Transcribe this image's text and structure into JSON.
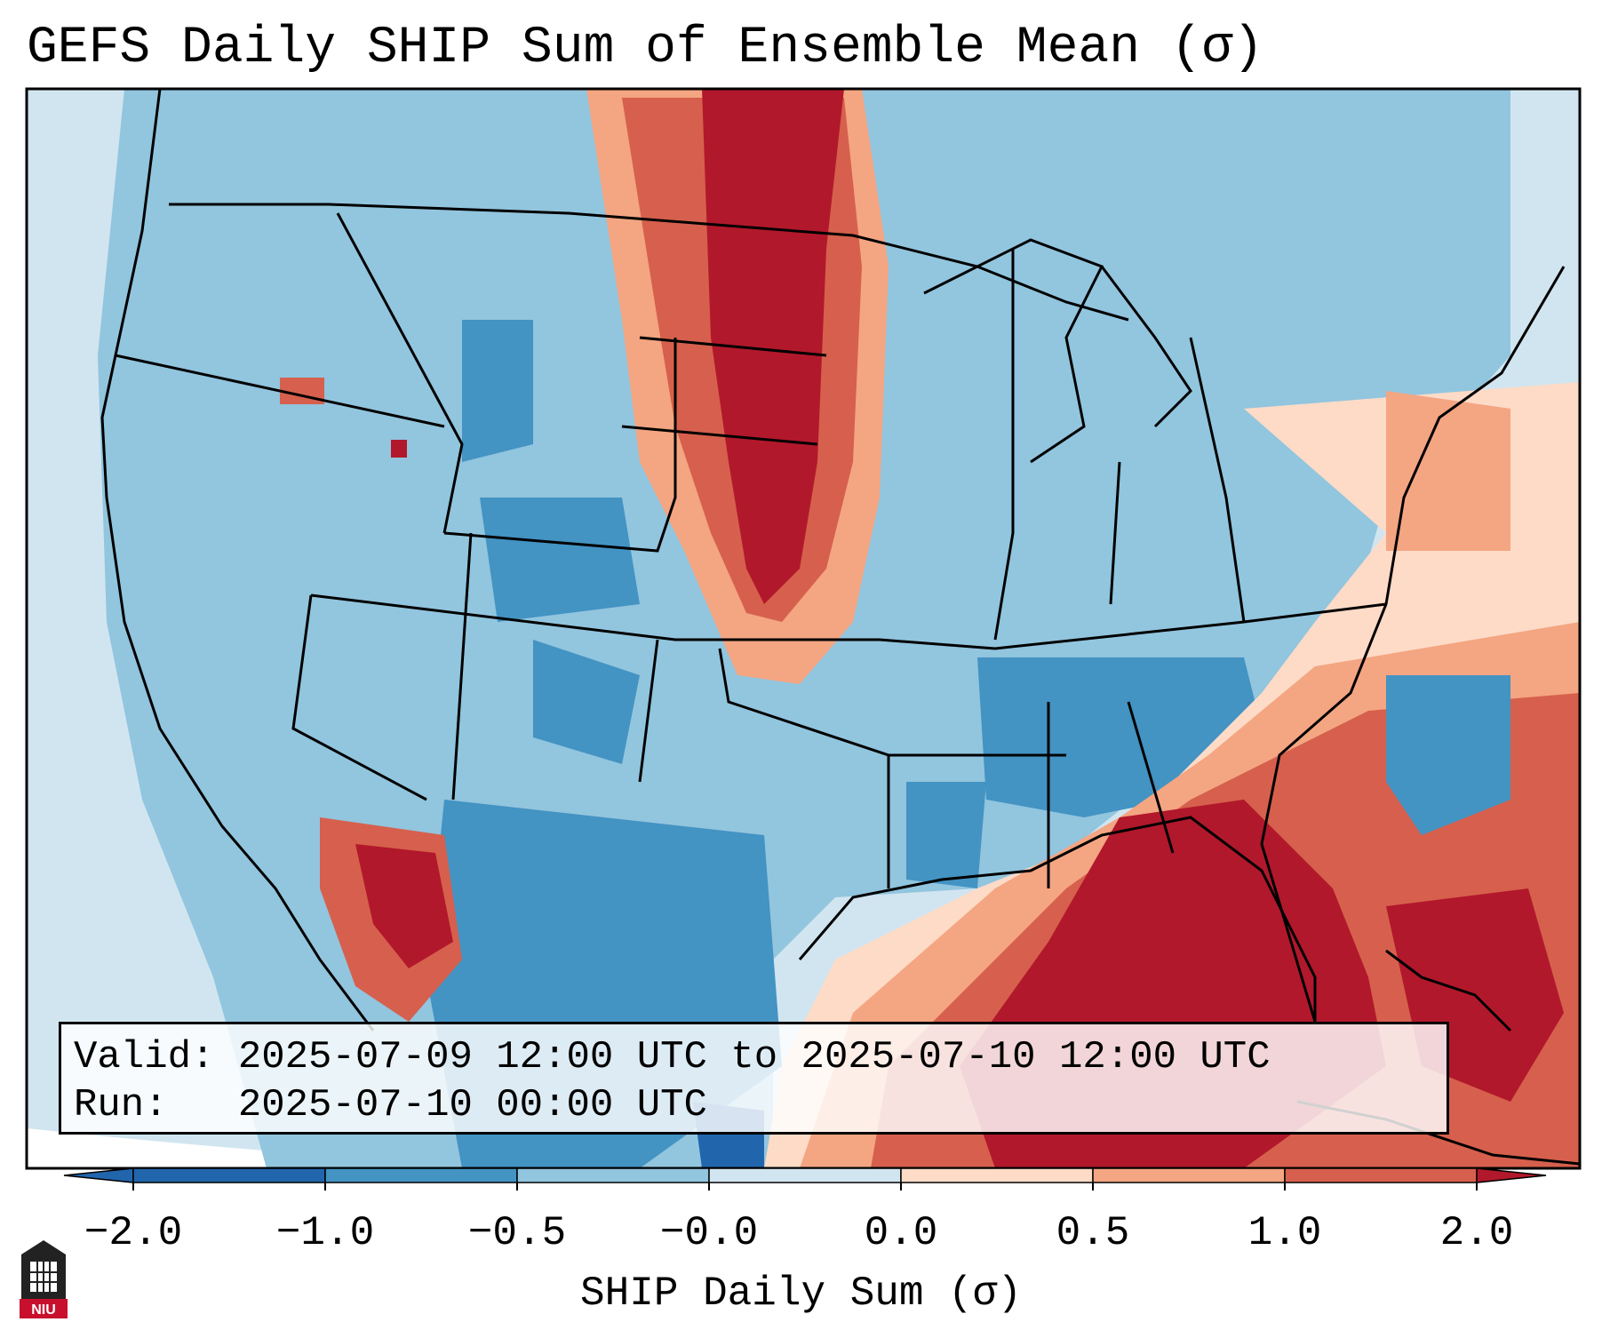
{
  "title": "GEFS Daily SHIP Sum of Ensemble Mean (σ)",
  "info": {
    "valid": "Valid: 2025-07-09 12:00 UTC to 2025-07-10 12:00 UTC",
    "run": "Run:   2025-07-10 00:00 UTC"
  },
  "colorbar": {
    "label": "SHIP Daily Sum (σ)",
    "ticks": [
      "−2.0",
      "−1.0",
      "−0.5",
      "−0.0",
      "0.0",
      "0.5",
      "1.0",
      "2.0"
    ],
    "colors": [
      "#2166ac",
      "#4393c3",
      "#92c5de",
      "#d1e5f0",
      "#fddbc7",
      "#f4a582",
      "#d6604d",
      "#b2182b"
    ]
  },
  "logo": {
    "text": "NIU",
    "color": "#c8102e"
  }
}
